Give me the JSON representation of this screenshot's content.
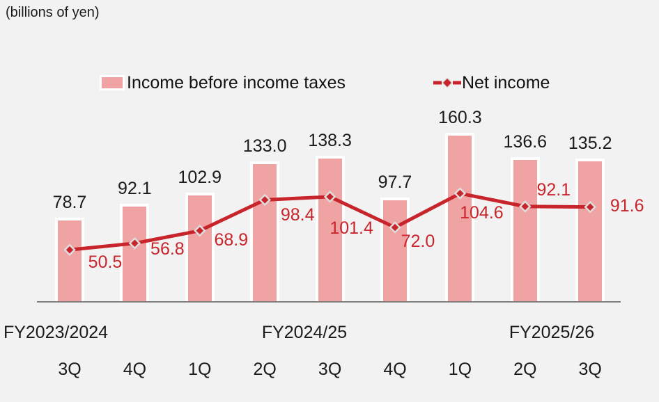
{
  "units_label": "(billions of yen)",
  "legend": {
    "bar_label": "Income before income taxes",
    "line_label": "Net income"
  },
  "colors": {
    "background": "#f2f2f2",
    "bar_fill": "#f0a3a3",
    "bar_border": "#ffffff",
    "line": "#c8242b",
    "marker_border": "#dddddd",
    "red_label": "#c9252c",
    "black_label": "#1a1a1a",
    "axis": "#7f7f7f"
  },
  "chart_data": {
    "type": "bar",
    "subtype": "bar+line combo",
    "categories": [
      "3Q",
      "4Q",
      "1Q",
      "2Q",
      "3Q",
      "4Q",
      "1Q",
      "2Q",
      "3Q"
    ],
    "fiscal_years": [
      {
        "label": "FY2023/2024",
        "quarter_indexes": [
          0,
          1
        ]
      },
      {
        "label": "FY2024/25",
        "quarter_indexes": [
          2,
          3,
          4,
          5
        ]
      },
      {
        "label": "FY2025/26",
        "quarter_indexes": [
          6,
          7,
          8
        ]
      }
    ],
    "series": [
      {
        "name": "Income before income taxes",
        "type": "bar",
        "values": [
          78.7,
          92.1,
          102.9,
          133.0,
          138.3,
          97.7,
          160.3,
          136.6,
          135.2
        ]
      },
      {
        "name": "Net income",
        "type": "line",
        "values": [
          50.5,
          56.8,
          68.9,
          98.4,
          101.4,
          72.0,
          104.6,
          92.1,
          91.6
        ]
      }
    ],
    "title": "",
    "xlabel": "",
    "ylabel": "(billions of yen)",
    "ylim": [
      0,
      185
    ],
    "grid": false,
    "y_axis_visible": false,
    "legend_position": "top",
    "data_labels": "all points, one decimal"
  }
}
